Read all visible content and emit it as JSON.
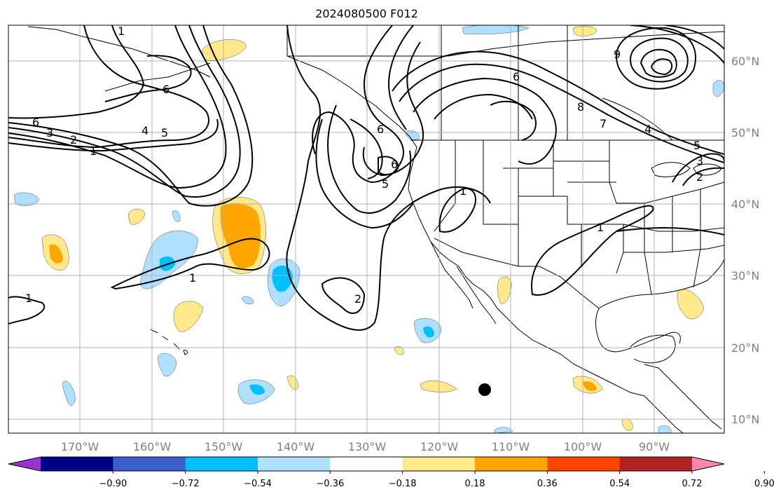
{
  "title": "2024080500 F012",
  "lon_labels": [
    "170°W",
    "160°W",
    "150°W",
    "140°W",
    "130°W",
    "120°W",
    "110°W",
    "100°W",
    "90°W"
  ],
  "lat_labels": [
    "60°N",
    "50°N",
    "40°N",
    "30°N",
    "20°N",
    "10°N"
  ],
  "colorbar": {
    "colors": [
      "#9933cc",
      "#00008b",
      "#3a5fcd",
      "#00bfff",
      "#b0e0ff",
      "#ffffff",
      "#ffe98a",
      "#ffa500",
      "#ff4500",
      "#b22222",
      "#ff88aa"
    ],
    "tick_labels": [
      "−0.90",
      "−0.72",
      "−0.54",
      "−0.36",
      "−0.18",
      "0.18",
      "0.36",
      "0.54",
      "0.72",
      "0.90"
    ]
  },
  "contour_labels": [
    "1",
    "1",
    "6",
    "3",
    "2",
    "1",
    "5",
    "4",
    "6",
    "6",
    "5",
    "6",
    "1",
    "1",
    "2",
    "1",
    "6",
    "7",
    "8",
    "9",
    "4",
    "5",
    "2",
    "3"
  ],
  "colors": {
    "land_line": "#000000",
    "grid": "#b0b0b0",
    "marker": "#000000"
  }
}
